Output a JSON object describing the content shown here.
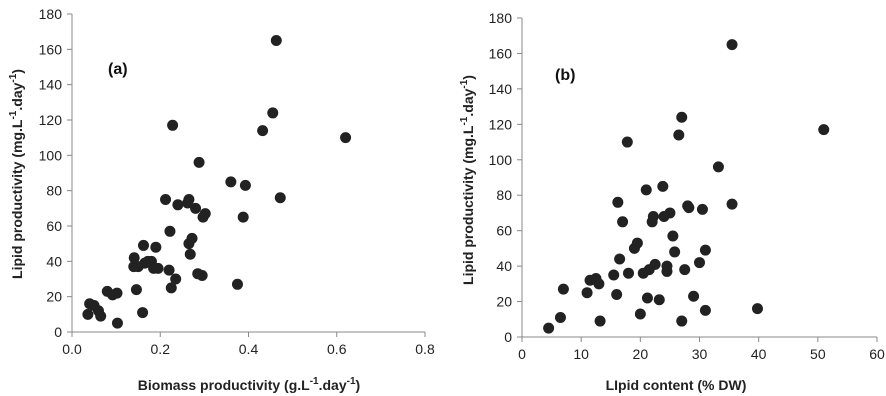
{
  "chart_data": [
    {
      "type": "scatter",
      "panel_label": "(a)",
      "xlabel": "Biomass productivity (g.L-1.day-1)",
      "xlabel_parts": {
        "pre": "Biomass productivity (g.L",
        "sup1": "-1",
        "mid": ".day",
        "sup2": "-1",
        "post": ")"
      },
      "ylabel": "Lipid productivity (mg.L-1.day-1)",
      "ylabel_parts": {
        "pre": "Lipid productivity (mg.L",
        "sup1": "-1",
        "mid": ".day",
        "sup2": "-1",
        "post": ")"
      },
      "xlim": [
        0,
        0.8
      ],
      "ylim": [
        0,
        180
      ],
      "xticks": [
        "0.0",
        "0.2",
        "0.4",
        "0.6",
        "0.8"
      ],
      "xtick_values": [
        0,
        0.2,
        0.4,
        0.6,
        0.8
      ],
      "yticks": [
        "0",
        "20",
        "40",
        "60",
        "80",
        "100",
        "120",
        "140",
        "160",
        "180"
      ],
      "ytick_values": [
        0,
        20,
        40,
        60,
        80,
        100,
        120,
        140,
        160,
        180
      ],
      "grid": false,
      "points": [
        [
          0.036,
          10
        ],
        [
          0.04,
          16
        ],
        [
          0.05,
          15
        ],
        [
          0.06,
          12
        ],
        [
          0.065,
          9
        ],
        [
          0.08,
          23
        ],
        [
          0.092,
          21
        ],
        [
          0.102,
          22
        ],
        [
          0.103,
          5
        ],
        [
          0.14,
          37
        ],
        [
          0.141,
          42
        ],
        [
          0.146,
          24
        ],
        [
          0.15,
          37
        ],
        [
          0.16,
          11
        ],
        [
          0.162,
          49
        ],
        [
          0.165,
          39
        ],
        [
          0.172,
          40
        ],
        [
          0.18,
          40
        ],
        [
          0.185,
          36
        ],
        [
          0.19,
          48
        ],
        [
          0.195,
          36
        ],
        [
          0.212,
          75
        ],
        [
          0.22,
          35
        ],
        [
          0.222,
          57
        ],
        [
          0.225,
          25
        ],
        [
          0.228,
          117
        ],
        [
          0.235,
          30
        ],
        [
          0.24,
          72
        ],
        [
          0.262,
          73
        ],
        [
          0.265,
          75
        ],
        [
          0.265,
          50
        ],
        [
          0.268,
          44
        ],
        [
          0.272,
          53
        ],
        [
          0.28,
          70
        ],
        [
          0.285,
          33
        ],
        [
          0.288,
          96
        ],
        [
          0.295,
          32
        ],
        [
          0.297,
          65
        ],
        [
          0.302,
          67
        ],
        [
          0.36,
          85
        ],
        [
          0.375,
          27
        ],
        [
          0.388,
          65
        ],
        [
          0.393,
          83
        ],
        [
          0.432,
          114
        ],
        [
          0.455,
          124
        ],
        [
          0.463,
          165
        ],
        [
          0.472,
          76
        ],
        [
          0.62,
          110
        ]
      ]
    },
    {
      "type": "scatter",
      "panel_label": "(b)",
      "xlabel": "LIpid content (% DW)",
      "ylabel": "Lipid productivity (mg.L-1.day-1)",
      "ylabel_parts": {
        "pre": "Lipid productivity (mg.L",
        "sup1": "-1",
        "mid": ".day",
        "sup2": "-1",
        "post": ")"
      },
      "xlim": [
        0,
        60
      ],
      "ylim": [
        0,
        180
      ],
      "xticks": [
        "0",
        "10",
        "20",
        "30",
        "40",
        "50",
        "60"
      ],
      "xtick_values": [
        0,
        10,
        20,
        30,
        40,
        50,
        60
      ],
      "yticks": [
        "0",
        "20",
        "40",
        "60",
        "80",
        "100",
        "120",
        "140",
        "160",
        "180"
      ],
      "ytick_values": [
        0,
        20,
        40,
        60,
        80,
        100,
        120,
        140,
        160,
        180
      ],
      "grid": false,
      "points": [
        [
          4.5,
          5
        ],
        [
          6.5,
          11
        ],
        [
          7.0,
          27
        ],
        [
          11.0,
          25
        ],
        [
          11.5,
          32
        ],
        [
          12.5,
          33
        ],
        [
          13.0,
          30
        ],
        [
          13.2,
          9
        ],
        [
          15.5,
          35
        ],
        [
          16.0,
          24
        ],
        [
          16.2,
          76
        ],
        [
          16.5,
          44
        ],
        [
          17.0,
          65
        ],
        [
          17.8,
          110
        ],
        [
          18.0,
          36
        ],
        [
          19.0,
          50
        ],
        [
          19.5,
          53
        ],
        [
          20.0,
          13
        ],
        [
          20.5,
          36
        ],
        [
          21.0,
          83
        ],
        [
          21.2,
          22
        ],
        [
          21.5,
          38
        ],
        [
          22.0,
          65
        ],
        [
          22.2,
          68
        ],
        [
          22.5,
          41
        ],
        [
          23.2,
          21
        ],
        [
          23.8,
          85
        ],
        [
          24.0,
          68
        ],
        [
          24.5,
          40
        ],
        [
          24.5,
          37
        ],
        [
          25.0,
          70
        ],
        [
          25.5,
          57
        ],
        [
          25.8,
          48
        ],
        [
          26.5,
          114
        ],
        [
          27.0,
          124
        ],
        [
          27.0,
          9
        ],
        [
          27.5,
          38
        ],
        [
          28.0,
          74
        ],
        [
          28.2,
          73
        ],
        [
          29.0,
          23
        ],
        [
          30.0,
          42
        ],
        [
          30.5,
          72
        ],
        [
          31.0,
          49
        ],
        [
          31.0,
          15
        ],
        [
          33.2,
          96
        ],
        [
          35.5,
          165
        ],
        [
          35.5,
          75
        ],
        [
          39.8,
          16
        ],
        [
          51.0,
          117
        ]
      ]
    }
  ]
}
